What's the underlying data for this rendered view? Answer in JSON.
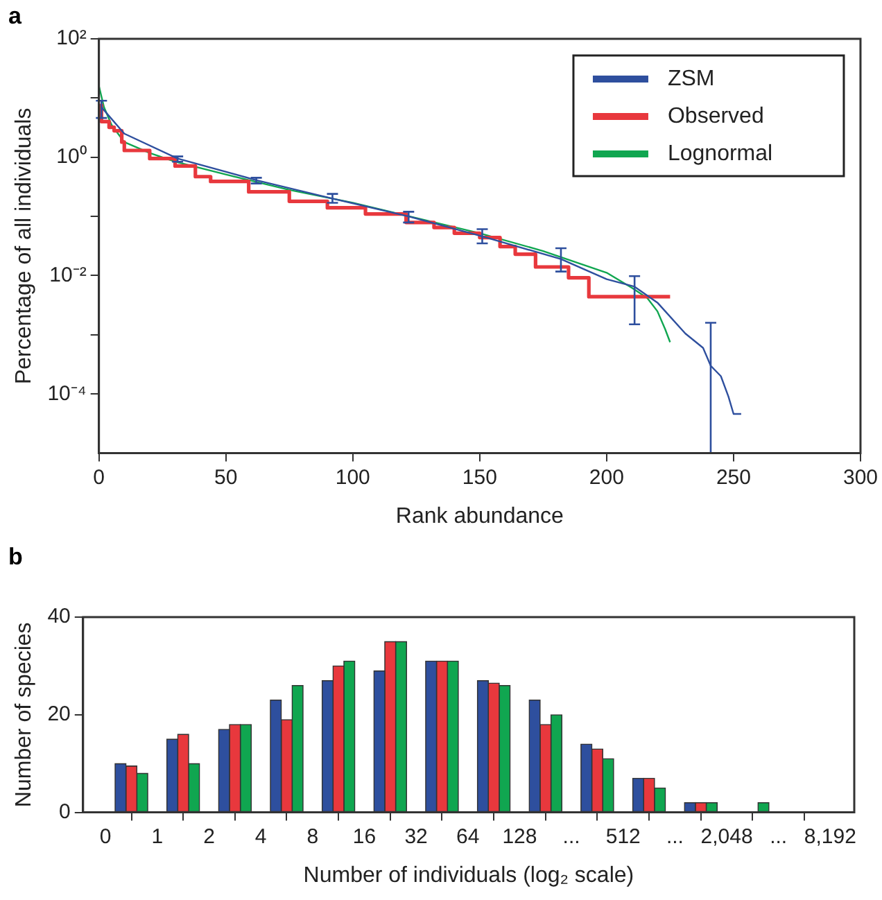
{
  "chart_data": [
    {
      "type": "line",
      "title": "a",
      "xlabel": "Rank abundance",
      "ylabel": "Percentage of all individuals",
      "log": "y",
      "legend": "top right",
      "grid": false,
      "xlim": [
        0,
        300
      ],
      "xticks": [
        0,
        50,
        100,
        150,
        200,
        250,
        300
      ],
      "ylim": [
        1e-05,
        100
      ],
      "yticks": [
        {
          "value": 100,
          "label": "10²"
        },
        {
          "value": 10,
          "label": null
        },
        {
          "value": 1,
          "label": "10⁰"
        },
        {
          "value": 0.1,
          "label": null
        },
        {
          "value": 0.01,
          "label": "10⁻²"
        },
        {
          "value": 0.001,
          "label": null
        },
        {
          "value": 0.0001,
          "label": "10⁻⁴"
        }
      ],
      "series": [
        {
          "name": "ZSM",
          "type": "line",
          "color": "#2e4f9e",
          "x": [
            1,
            10,
            31,
            62,
            92,
            122,
            151,
            182,
            200,
            211,
            220,
            231,
            238,
            241,
            245,
            248,
            250,
            253
          ],
          "values": [
            7,
            2.5,
            0.95,
            0.41,
            0.2,
            0.1,
            0.046,
            0.019,
            0.0087,
            0.0065,
            0.0035,
            0.00105,
            0.0006,
            0.0003,
            0.0002,
            9e-05,
            4.6e-05,
            4.6e-05
          ],
          "errors": [
            [
              4.6,
              9
            ],
            null,
            [
              0.84,
              1.03
            ],
            [
              0.36,
              0.45
            ],
            [
              0.17,
              0.24
            ],
            [
              0.079,
              0.12
            ],
            [
              0.035,
              0.061
            ],
            [
              0.0117,
              0.029
            ],
            null,
            [
              0.0015,
              0.0098
            ],
            null,
            null,
            null,
            [
              1e-05,
              0.0016
            ],
            null,
            null,
            null,
            null
          ]
        },
        {
          "name": "Observed",
          "type": "step",
          "color": "#e8383d",
          "x": [
            1,
            4,
            6,
            9,
            10,
            20,
            30,
            38,
            44,
            59,
            75,
            90,
            105,
            121,
            132,
            140,
            150,
            158,
            164,
            172,
            185,
            193,
            207,
            225
          ],
          "values": [
            8,
            4,
            3.2,
            2.8,
            1.8,
            1.3,
            0.95,
            0.71,
            0.47,
            0.39,
            0.26,
            0.18,
            0.14,
            0.11,
            0.079,
            0.065,
            0.052,
            0.044,
            0.031,
            0.023,
            0.014,
            0.0092,
            0.0044,
            0.0044
          ]
        },
        {
          "name": "Lognormal",
          "type": "line",
          "color": "#10a650",
          "x": [
            0,
            2,
            5,
            10,
            20,
            30,
            50,
            75,
            100,
            125,
            150,
            175,
            200,
            210,
            216,
            220,
            223,
            225
          ],
          "values": [
            16,
            7,
            3.5,
            1.8,
            1.18,
            0.84,
            0.51,
            0.28,
            0.17,
            0.094,
            0.052,
            0.026,
            0.0112,
            0.0062,
            0.0042,
            0.0025,
            0.00126,
            0.00075
          ]
        }
      ]
    },
    {
      "type": "histogram",
      "title": "b",
      "xlabel": "Number of individuals (log₂ scale)",
      "ylabel": "Number of species",
      "legend": false,
      "grid": false,
      "log": "x",
      "xlim": [
        0.37,
        11300
      ],
      "bins": [
        0.5,
        1,
        2,
        4,
        8,
        16,
        32,
        64,
        128,
        256,
        512,
        1024,
        2048,
        4096,
        8192
      ],
      "xticks": [
        {
          "value": 0.5,
          "label": "0"
        },
        1,
        2,
        4,
        8,
        16,
        32,
        64,
        128,
        {
          "value": 256,
          "label": "..."
        },
        512,
        {
          "value": 1024,
          "label": "..."
        },
        {
          "value": 2048,
          "label": "2,048"
        },
        {
          "value": 4096,
          "label": "..."
        },
        {
          "value": 8192,
          "label": "8,192"
        }
      ],
      "ylim": [
        0,
        40
      ],
      "yticks": [
        0,
        20,
        40
      ],
      "series": [
        {
          "color": "#2e4f9e",
          "values": [
            10,
            15,
            17,
            23,
            27,
            29,
            31,
            27,
            23,
            14,
            7,
            2,
            0,
            0
          ]
        },
        {
          "color": "#e8383d",
          "values": [
            9.5,
            16,
            18,
            19,
            30,
            35,
            31,
            26.5,
            18,
            13,
            7,
            2,
            0,
            0
          ]
        },
        {
          "color": "#10a650",
          "values": [
            8,
            10,
            18,
            26,
            31,
            35,
            31,
            26,
            20,
            11,
            5,
            2,
            2,
            0
          ]
        }
      ]
    }
  ]
}
